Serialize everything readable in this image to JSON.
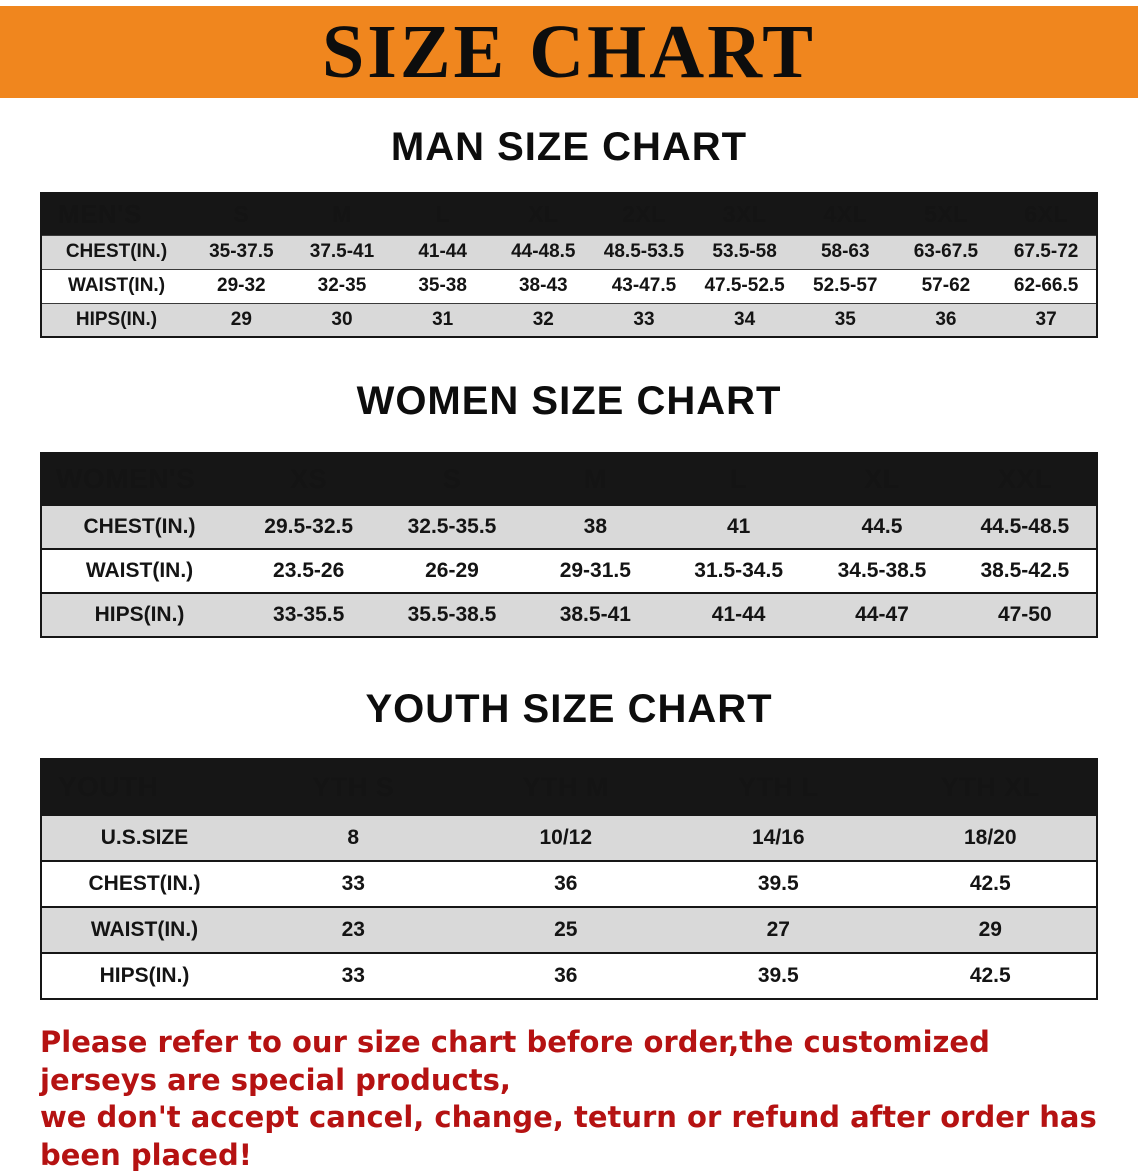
{
  "banner": {
    "title": "SIZE CHART"
  },
  "colors": {
    "banner_bg": "#F0861E",
    "table_header_bg": "#161616",
    "row_stripe": "#D9D9D9",
    "disclaimer_text": "#B51212"
  },
  "sections": [
    {
      "id": "men",
      "heading": "MAN SIZE CHART",
      "table": {
        "header": [
          "MEN'S",
          "S",
          "M",
          "L",
          "XL",
          "2XL",
          "3XL",
          "4XL",
          "5XL",
          "6XL"
        ],
        "rows": [
          {
            "label": "CHEST(IN.)",
            "values": [
              "35-37.5",
              "37.5-41",
              "41-44",
              "44-48.5",
              "48.5-53.5",
              "53.5-58",
              "58-63",
              "63-67.5",
              "67.5-72"
            ]
          },
          {
            "label": "WAIST(IN.)",
            "values": [
              "29-32",
              "32-35",
              "35-38",
              "38-43",
              "43-47.5",
              "47.5-52.5",
              "52.5-57",
              "57-62",
              "62-66.5"
            ]
          },
          {
            "label": "HIPS(IN.)",
            "values": [
              "29",
              "30",
              "31",
              "32",
              "33",
              "34",
              "35",
              "36",
              "37"
            ]
          }
        ]
      }
    },
    {
      "id": "women",
      "heading": "WOMEN SIZE CHART",
      "table": {
        "header": [
          "WOMEN'S",
          "XS",
          "S",
          "M",
          "L",
          "XL",
          "XXL"
        ],
        "rows": [
          {
            "label": "CHEST(IN.)",
            "values": [
              "29.5-32.5",
              "32.5-35.5",
              "38",
              "41",
              "44.5",
              "44.5-48.5"
            ]
          },
          {
            "label": "WAIST(IN.)",
            "values": [
              "23.5-26",
              "26-29",
              "29-31.5",
              "31.5-34.5",
              "34.5-38.5",
              "38.5-42.5"
            ]
          },
          {
            "label": "HIPS(IN.)",
            "values": [
              "33-35.5",
              "35.5-38.5",
              "38.5-41",
              "41-44",
              "44-47",
              "47-50"
            ]
          }
        ]
      }
    },
    {
      "id": "youth",
      "heading": "YOUTH SIZE CHART",
      "table": {
        "header": [
          "YOUTH",
          "YTH S",
          "YTH M",
          "YTH L",
          "YTH XL"
        ],
        "rows": [
          {
            "label": "U.S.SIZE",
            "values": [
              "8",
              "10/12",
              "14/16",
              "18/20"
            ]
          },
          {
            "label": "CHEST(IN.)",
            "values": [
              "33",
              "36",
              "39.5",
              "42.5"
            ]
          },
          {
            "label": "WAIST(IN.)",
            "values": [
              "23",
              "25",
              "27",
              "29"
            ]
          },
          {
            "label": "HIPS(IN.)",
            "values": [
              "33",
              "36",
              "39.5",
              "42.5"
            ]
          }
        ]
      }
    }
  ],
  "disclaimer": {
    "lines": [
      "Please refer to our size chart before order,the customized jerseys are special products,",
      "we don't accept cancel, change, teturn or refund after order has been placed!"
    ]
  }
}
